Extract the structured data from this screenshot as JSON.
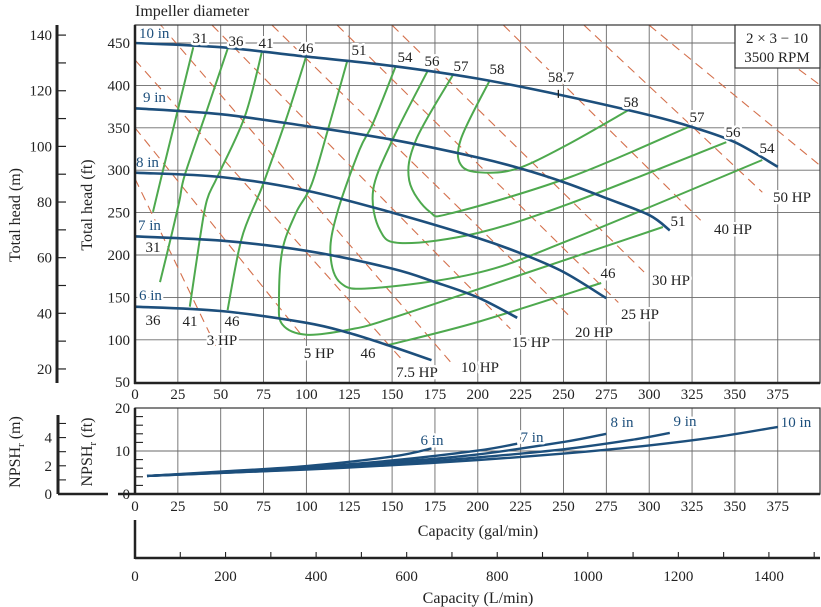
{
  "header": "Impeller diameter",
  "colors": {
    "head_curve": "#1d4f7c",
    "efficiency": "#4ea94e",
    "power": "#d4704c",
    "grid": "#6a6a6a",
    "axis": "#222222"
  },
  "pump_box": {
    "model": "2 × 3 − 10",
    "speed": "3500 RPM"
  },
  "chart_data": [
    {
      "type": "line",
      "name": "performance",
      "ylabel": "Total head (ft)",
      "ylabel_secondary": "Total head (m)",
      "xlim": [
        0,
        400
      ],
      "ylim": [
        50,
        471
      ],
      "grid": true,
      "x_ticks": [
        "0",
        "25",
        "50",
        "75",
        "100",
        "125",
        "150",
        "175",
        "200",
        "225",
        "250",
        "275",
        "300",
        "325",
        "350",
        "375"
      ],
      "y_ticks": [
        "50",
        "100",
        "150",
        "200",
        "250",
        "300",
        "350",
        "400",
        "450"
      ],
      "y2_ticks": [
        "20",
        "40",
        "60",
        "80",
        "100",
        "120",
        "140"
      ],
      "head_curves": [
        {
          "name": "10 in",
          "points": [
            [
              0,
              450
            ],
            [
              50,
              445
            ],
            [
              100,
              434
            ],
            [
              150,
              423
            ],
            [
              200,
              408
            ],
            [
              250,
              388
            ],
            [
              300,
              365
            ],
            [
              325,
              351
            ],
            [
              350,
              333
            ],
            [
              375,
              304
            ]
          ]
        },
        {
          "name": "9 in",
          "points": [
            [
              0,
              373
            ],
            [
              50,
              366
            ],
            [
              100,
              352
            ],
            [
              150,
              336
            ],
            [
              200,
              315
            ],
            [
              225,
              302
            ],
            [
              250,
              286
            ],
            [
              275,
              267
            ],
            [
              300,
              247
            ],
            [
              312,
              229
            ]
          ]
        },
        {
          "name": "8 in",
          "points": [
            [
              0,
              297
            ],
            [
              50,
              292
            ],
            [
              100,
              276
            ],
            [
              150,
              250
            ],
            [
              200,
              220
            ],
            [
              225,
              202
            ],
            [
              250,
              180
            ],
            [
              275,
              149
            ]
          ]
        },
        {
          "name": "7 in",
          "points": [
            [
              0,
              222
            ],
            [
              50,
              217
            ],
            [
              100,
              205
            ],
            [
              150,
              184
            ],
            [
              175,
              168
            ],
            [
              200,
              150
            ],
            [
              223,
              126
            ]
          ]
        },
        {
          "name": "6 in",
          "points": [
            [
              0,
              139
            ],
            [
              50,
              134
            ],
            [
              100,
              120
            ],
            [
              125,
              108
            ],
            [
              150,
              92
            ],
            [
              173,
              76
            ]
          ]
        }
      ],
      "efficiency_contours": [
        {
          "label": "31",
          "points": [
            [
              34,
              445
            ],
            [
              25,
              371
            ],
            [
              16,
              297
            ],
            [
              10.5,
              251
            ]
          ]
        },
        {
          "label": "36",
          "points": [
            [
              54,
              443
            ],
            [
              41,
              365
            ],
            [
              29,
              294
            ],
            [
              26,
              265
            ],
            [
              21.6,
              226
            ],
            [
              14.6,
              168
            ]
          ]
        },
        {
          "label": "41",
          "points": [
            [
              74,
              439
            ],
            [
              64,
              363
            ],
            [
              48,
              292
            ],
            [
              42,
              265
            ],
            [
              38,
              221
            ],
            [
              32,
              139
            ]
          ]
        },
        {
          "label": "46",
          "points": [
            [
              100,
              435
            ],
            [
              88,
              359
            ],
            [
              75,
              285
            ],
            [
              71,
              265
            ],
            [
              62,
              218
            ],
            [
              54,
              135
            ]
          ]
        },
        {
          "label": "51",
          "points": [
            [
              124,
              430
            ],
            [
              113,
              351
            ],
            [
              103,
              283
            ],
            [
              94,
              250
            ],
            [
              86,
              206
            ],
            [
              84,
              147
            ],
            [
              86,
              118
            ],
            [
              100,
              106
            ],
            [
              125,
              112
            ],
            [
              149,
              125
            ],
            [
              230,
              180
            ],
            [
              308,
              233
            ]
          ]
        },
        {
          "label": "54",
          "points": [
            [
              152,
              422
            ],
            [
              139,
              356
            ],
            [
              131,
              324
            ],
            [
              118,
              250
            ],
            [
              114,
              202
            ],
            [
              120,
              167
            ],
            [
              139,
              161
            ],
            [
              200,
              179
            ],
            [
              254,
              218
            ],
            [
              366,
              312
            ]
          ]
        },
        {
          "label": "56",
          "points": [
            [
              171,
              418
            ],
            [
              151,
              339
            ],
            [
              139,
              277
            ],
            [
              143,
              229
            ],
            [
              156,
              214
            ],
            [
              200,
              226
            ],
            [
              254,
              261
            ],
            [
              345,
              333
            ]
          ]
        },
        {
          "label": "57",
          "points": [
            [
              186,
              414
            ],
            [
              164,
              336
            ],
            [
              160,
              288
            ],
            [
              172,
              251
            ],
            [
              186,
              250
            ],
            [
              254,
              292
            ],
            [
              323,
              351
            ]
          ]
        },
        {
          "label": "58",
          "points": [
            [
              207,
              406
            ],
            [
              190,
              336
            ],
            [
              191,
              304
            ],
            [
              207,
              297
            ],
            [
              226,
              304
            ],
            [
              254,
              332
            ],
            [
              288,
              371
            ]
          ]
        },
        {
          "label": "46",
          "points": [
            [
              148,
              94
            ],
            [
              200,
              121
            ],
            [
              272,
              167
            ]
          ]
        }
      ],
      "best_efficiency": {
        "label": "58.7",
        "point": [
          247,
          390
        ]
      },
      "power_lines": [
        {
          "label": "3 HP",
          "points": [
            [
              0,
              290
            ],
            [
              47,
              93
            ]
          ]
        },
        {
          "label": "5 HP",
          "points": [
            [
              0,
              350
            ],
            [
              99,
              101
            ]
          ]
        },
        {
          "label": "7.5 HP",
          "points": [
            [
              0,
              430
            ],
            [
              156,
              76
            ]
          ]
        },
        {
          "label": "10 HP",
          "points": [
            [
              15,
              471
            ],
            [
              184,
              74
            ]
          ]
        },
        {
          "label": "15 HP",
          "points": [
            [
              45,
              471
            ],
            [
              219,
              113
            ]
          ]
        },
        {
          "label": "20 HP",
          "points": [
            [
              80,
              471
            ],
            [
              255,
              125
            ]
          ]
        },
        {
          "label": "25 HP",
          "points": [
            [
              118,
              471
            ],
            [
              282,
              144
            ]
          ]
        },
        {
          "label": "30 HP",
          "points": [
            [
              150,
              471
            ],
            [
              297,
              180
            ]
          ]
        },
        {
          "label": "40 HP",
          "points": [
            [
              215,
              471
            ],
            [
              330,
              241
            ]
          ]
        },
        {
          "label": "50 HP",
          "points": [
            [
              262,
              471
            ],
            [
              366,
              274
            ]
          ]
        },
        {
          "label": "",
          "points": [
            [
              300,
              471
            ],
            [
              400,
              305
            ]
          ]
        },
        {
          "label": "",
          "points": [
            [
              352,
              471
            ],
            [
              400,
              400
            ]
          ]
        }
      ]
    },
    {
      "type": "line",
      "name": "npsh",
      "ylabel": {
        "main": "NPSH",
        "sub": "r",
        "unit": " (ft)"
      },
      "ylabel_secondary": {
        "main": "NPSH",
        "sub": "r",
        "unit": " (m)"
      },
      "xlabel": "Capacity (gal/min)",
      "xlabel_secondary": "Capacity (L/min)",
      "xlim": [
        0,
        400
      ],
      "ylim": [
        0,
        20
      ],
      "grid": true,
      "x_ticks": [
        "0",
        "25",
        "50",
        "75",
        "100",
        "125",
        "150",
        "175",
        "200",
        "225",
        "250",
        "275",
        "300",
        "325",
        "350",
        "375"
      ],
      "y_ticks": [
        "0",
        "10",
        "20"
      ],
      "y2_ticks": [
        "0",
        "2",
        "4"
      ],
      "x2_ticks": [
        "0",
        "200",
        "400",
        "600",
        "800",
        "1000",
        "1200",
        "1400"
      ],
      "series": [
        {
          "name": "10 in",
          "points": [
            [
              7,
              4.2
            ],
            [
              50,
              4.9
            ],
            [
              100,
              5.7
            ],
            [
              150,
              6.7
            ],
            [
              200,
              7.9
            ],
            [
              250,
              9.4
            ],
            [
              300,
              11.3
            ],
            [
              340,
              13.3
            ],
            [
              375,
              15.6
            ]
          ]
        },
        {
          "name": "9 in",
          "points": [
            [
              7,
              4.2
            ],
            [
              50,
              4.9
            ],
            [
              100,
              5.8
            ],
            [
              150,
              7.0
            ],
            [
              200,
              8.5
            ],
            [
              250,
              10.4
            ],
            [
              290,
              12.6
            ],
            [
              312,
              14.2
            ]
          ]
        },
        {
          "name": "8 in",
          "points": [
            [
              7,
              4.2
            ],
            [
              50,
              5.0
            ],
            [
              100,
              6.0
            ],
            [
              150,
              7.4
            ],
            [
              200,
              9.2
            ],
            [
              250,
              12.1
            ],
            [
              275,
              14.0
            ]
          ]
        },
        {
          "name": "7 in",
          "points": [
            [
              7,
              4.2
            ],
            [
              50,
              5.1
            ],
            [
              100,
              6.2
            ],
            [
              150,
              7.8
            ],
            [
              200,
              10.1
            ],
            [
              223,
              11.7
            ]
          ]
        },
        {
          "name": "6 in",
          "points": [
            [
              7,
              4.2
            ],
            [
              50,
              5.2
            ],
            [
              100,
              6.5
            ],
            [
              150,
              8.7
            ],
            [
              173,
              10.6
            ]
          ]
        }
      ]
    }
  ]
}
